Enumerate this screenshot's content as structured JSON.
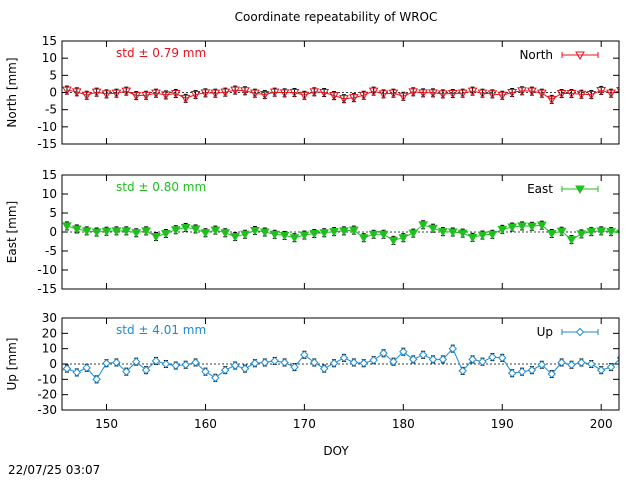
{
  "page": {
    "title": "Coordinate repeatability of WROC",
    "timestamp": "22/07/25 03:07"
  },
  "chart_data": [
    {
      "type": "line",
      "component": "North",
      "ylabel": "North [mm]",
      "ylim": [
        -15,
        15
      ],
      "yticks": [
        15,
        10,
        5,
        0,
        -5,
        -10,
        -15
      ],
      "legend": "North",
      "legend_position": "top-right",
      "marker": "triangle-down-open",
      "color": "#e8121c",
      "annotation": "std ± 0.79 mm",
      "series": [
        {
          "x": [
            146,
            147,
            148,
            149,
            150,
            151,
            152,
            153,
            154,
            155,
            156,
            157,
            158,
            159,
            160,
            161,
            162,
            163,
            164,
            165,
            166,
            167,
            168,
            169,
            170,
            171,
            172,
            173,
            174,
            175,
            176,
            177,
            178,
            179,
            180,
            181,
            182,
            183,
            184,
            185,
            186,
            187,
            188,
            189,
            190,
            191,
            192,
            193,
            194,
            195,
            196,
            197,
            198,
            199,
            200,
            201,
            202
          ],
          "values": [
            0.7,
            0.2,
            -0.8,
            0.1,
            -0.4,
            -0.2,
            0.4,
            -0.9,
            -0.8,
            -0.2,
            -0.7,
            -0.3,
            -1.7,
            -0.6,
            -0.1,
            -0.2,
            0.1,
            0.7,
            0.5,
            -0.2,
            -0.6,
            0.1,
            -0.1,
            0.0,
            -0.8,
            0.2,
            0.0,
            -0.9,
            -1.8,
            -1.5,
            -0.8,
            0.4,
            -0.4,
            -0.2,
            -1.1,
            0.2,
            -0.1,
            -0.1,
            -0.4,
            -0.3,
            -0.2,
            0.4,
            -0.2,
            -0.4,
            -0.8,
            0.0,
            0.5,
            0.4,
            -0.2,
            -2.0,
            -0.3,
            -0.3,
            -0.5,
            -0.6,
            0.6,
            -0.2,
            0.6
          ]
        }
      ]
    },
    {
      "type": "line",
      "component": "East",
      "ylabel": "East [mm]",
      "ylim": [
        -15,
        15
      ],
      "yticks": [
        15,
        10,
        5,
        0,
        -5,
        -10,
        -15
      ],
      "legend": "East",
      "legend_position": "top-right",
      "marker": "triangle-down-filled",
      "color": "#1fbf1f",
      "annotation": "std ± 0.80 mm",
      "series": [
        {
          "x": [
            146,
            147,
            148,
            149,
            150,
            151,
            152,
            153,
            154,
            155,
            156,
            157,
            158,
            159,
            160,
            161,
            162,
            163,
            164,
            165,
            166,
            167,
            168,
            169,
            170,
            171,
            172,
            173,
            174,
            175,
            176,
            177,
            178,
            179,
            180,
            181,
            182,
            183,
            184,
            185,
            186,
            187,
            188,
            189,
            190,
            191,
            192,
            193,
            194,
            195,
            196,
            197,
            198,
            199,
            200,
            201,
            202
          ],
          "values": [
            1.6,
            0.8,
            0.3,
            0.0,
            0.2,
            0.3,
            0.3,
            -0.2,
            0.3,
            -1.2,
            -0.4,
            0.6,
            1.2,
            0.8,
            -0.2,
            0.5,
            -0.2,
            -1.2,
            -0.6,
            0.4,
            0.0,
            -0.6,
            -0.9,
            -1.5,
            -0.8,
            -0.4,
            -0.2,
            0.1,
            0.3,
            0.5,
            -1.5,
            -0.6,
            -0.6,
            -2.2,
            -1.5,
            -0.3,
            1.9,
            1.0,
            0.1,
            0.0,
            -0.3,
            -1.4,
            -0.8,
            -0.6,
            0.7,
            1.3,
            1.6,
            1.5,
            1.8,
            -0.4,
            0.2,
            -2.0,
            -0.5,
            0.1,
            0.3,
            0.1,
            -0.3
          ]
        }
      ]
    },
    {
      "type": "line",
      "component": "Up",
      "ylabel": "Up [mm]",
      "ylim": [
        -30,
        30
      ],
      "yticks": [
        30,
        20,
        10,
        0,
        -10,
        -20,
        -30
      ],
      "legend": "Up",
      "legend_position": "top-right",
      "marker": "diamond-open",
      "color": "#1a8ad4",
      "annotation": "std ± 4.01 mm",
      "series": [
        {
          "x": [
            145,
            146,
            147,
            148,
            149,
            150,
            151,
            152,
            153,
            154,
            155,
            156,
            157,
            158,
            159,
            160,
            161,
            162,
            163,
            164,
            165,
            166,
            167,
            168,
            169,
            170,
            171,
            172,
            173,
            174,
            175,
            176,
            177,
            178,
            179,
            180,
            181,
            182,
            183,
            184,
            185,
            186,
            187,
            188,
            189,
            190,
            191,
            192,
            193,
            194,
            195,
            196,
            197,
            198,
            199,
            200,
            201,
            202
          ],
          "values": [
            -5.0,
            -3.0,
            -5.5,
            -2.5,
            -10.0,
            0.5,
            1.0,
            -5.0,
            1.5,
            -4.0,
            2.0,
            0.0,
            -1.0,
            -0.5,
            1.0,
            -5.0,
            -9.0,
            -4.0,
            -1.0,
            -3.0,
            0.5,
            1.0,
            2.0,
            1.0,
            -2.0,
            6.0,
            1.0,
            -3.0,
            0.5,
            4.0,
            1.0,
            0.5,
            2.5,
            7.0,
            1.5,
            8.0,
            3.0,
            6.0,
            3.0,
            3.0,
            10.0,
            -4.5,
            3.0,
            1.5,
            4.5,
            4.0,
            -6.0,
            -5.0,
            -4.0,
            -0.5,
            -6.5,
            1.0,
            -0.5,
            1.0,
            0.0,
            -4.0,
            -2.0,
            4.0
          ]
        }
      ]
    }
  ],
  "x_axis": {
    "label": "DOY",
    "range": [
      145.5,
      201.8
    ],
    "ticks": [
      150,
      160,
      170,
      180,
      190,
      200
    ]
  }
}
